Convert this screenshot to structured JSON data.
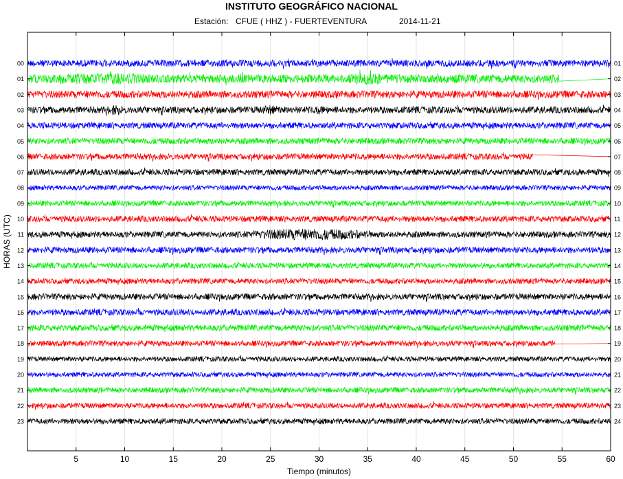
{
  "title": "INSTITUTO GEOGRÁFICO NACIONAL",
  "subtitle": {
    "station_label": "Estación:",
    "station": "CFUE ( HHZ ) - FUERTEVENTURA",
    "date": "2014-11-21"
  },
  "chart_data": {
    "type": "line",
    "title": "INSTITUTO GEOGRÁFICO NACIONAL",
    "xlabel": "Tiempo (minutos)",
    "ylabel": "HORAS (UTC)",
    "xlim": [
      0,
      60
    ],
    "x_ticks": [
      5,
      10,
      15,
      20,
      25,
      30,
      35,
      40,
      45,
      50,
      55,
      60
    ],
    "grid": true,
    "left_labels": [
      "00",
      "01",
      "02",
      "03",
      "04",
      "05",
      "06",
      "07",
      "08",
      "09",
      "10",
      "11",
      "12",
      "13",
      "14",
      "15",
      "16",
      "17",
      "18",
      "19",
      "20",
      "21",
      "22",
      "23"
    ],
    "right_labels": [
      "01",
      "02",
      "03",
      "04",
      "05",
      "06",
      "07",
      "08",
      "09",
      "10",
      "11",
      "12",
      "13",
      "14",
      "15",
      "16",
      "17",
      "18",
      "19",
      "20",
      "21",
      "22",
      "23",
      "24"
    ],
    "colors": [
      "#0000ff",
      "#00ee00",
      "#ff0000",
      "#000000"
    ],
    "traces": [
      {
        "hour": "00",
        "color": "#0000ff",
        "amplitude": 0.55,
        "end_minute": 60,
        "events": [
          {
            "minute": 59.5,
            "width": 0.4,
            "gain": 1.6
          }
        ]
      },
      {
        "hour": "01",
        "color": "#00ee00",
        "amplitude": 0.7,
        "end_minute": 54.7,
        "events": [
          {
            "minute": 1.5,
            "width": 12,
            "gain": 1.3
          },
          {
            "minute": 33,
            "width": 4,
            "gain": 1.4
          }
        ]
      },
      {
        "hour": "02",
        "color": "#ff0000",
        "amplitude": 0.6,
        "end_minute": 60,
        "events": []
      },
      {
        "hour": "03",
        "color": "#000000",
        "amplitude": 0.55,
        "end_minute": 60,
        "events": [
          {
            "minute": 8,
            "width": 2,
            "gain": 1.5
          },
          {
            "minute": 24,
            "width": 2,
            "gain": 1.4
          },
          {
            "minute": 29,
            "width": 2,
            "gain": 1.3
          }
        ]
      },
      {
        "hour": "04",
        "color": "#0000ff",
        "amplitude": 0.5,
        "end_minute": 60,
        "events": []
      },
      {
        "hour": "05",
        "color": "#00ee00",
        "amplitude": 0.5,
        "end_minute": 60,
        "events": []
      },
      {
        "hour": "06",
        "color": "#ff0000",
        "amplitude": 0.5,
        "end_minute": 52,
        "events": []
      },
      {
        "hour": "07",
        "color": "#000000",
        "amplitude": 0.5,
        "end_minute": 60,
        "events": []
      },
      {
        "hour": "08",
        "color": "#0000ff",
        "amplitude": 0.4,
        "end_minute": 60,
        "events": []
      },
      {
        "hour": "09",
        "color": "#00ee00",
        "amplitude": 0.45,
        "end_minute": 60,
        "events": []
      },
      {
        "hour": "10",
        "color": "#ff0000",
        "amplitude": 0.5,
        "end_minute": 60,
        "events": []
      },
      {
        "hour": "11",
        "color": "#000000",
        "amplitude": 0.5,
        "end_minute": 60,
        "events": [
          {
            "minute": 22,
            "width": 14,
            "gain": 1.9
          }
        ]
      },
      {
        "hour": "12",
        "color": "#0000ff",
        "amplitude": 0.5,
        "end_minute": 60,
        "events": []
      },
      {
        "hour": "13",
        "color": "#00ee00",
        "amplitude": 0.45,
        "end_minute": 60,
        "events": []
      },
      {
        "hour": "14",
        "color": "#ff0000",
        "amplitude": 0.45,
        "end_minute": 60,
        "events": []
      },
      {
        "hour": "15",
        "color": "#000000",
        "amplitude": 0.5,
        "end_minute": 60,
        "events": []
      },
      {
        "hour": "16",
        "color": "#0000ff",
        "amplitude": 0.5,
        "end_minute": 60,
        "events": []
      },
      {
        "hour": "17",
        "color": "#00ee00",
        "amplitude": 0.5,
        "end_minute": 60,
        "events": []
      },
      {
        "hour": "18",
        "color": "#ff0000",
        "amplitude": 0.45,
        "end_minute": 54.3,
        "events": []
      },
      {
        "hour": "19",
        "color": "#000000",
        "amplitude": 0.4,
        "end_minute": 60,
        "events": []
      },
      {
        "hour": "20",
        "color": "#0000ff",
        "amplitude": 0.4,
        "end_minute": 60,
        "events": []
      },
      {
        "hour": "21",
        "color": "#00ee00",
        "amplitude": 0.45,
        "end_minute": 60,
        "events": []
      },
      {
        "hour": "22",
        "color": "#ff0000",
        "amplitude": 0.45,
        "end_minute": 60,
        "events": []
      },
      {
        "hour": "23",
        "color": "#000000",
        "amplitude": 0.45,
        "end_minute": 60,
        "events": []
      }
    ]
  }
}
